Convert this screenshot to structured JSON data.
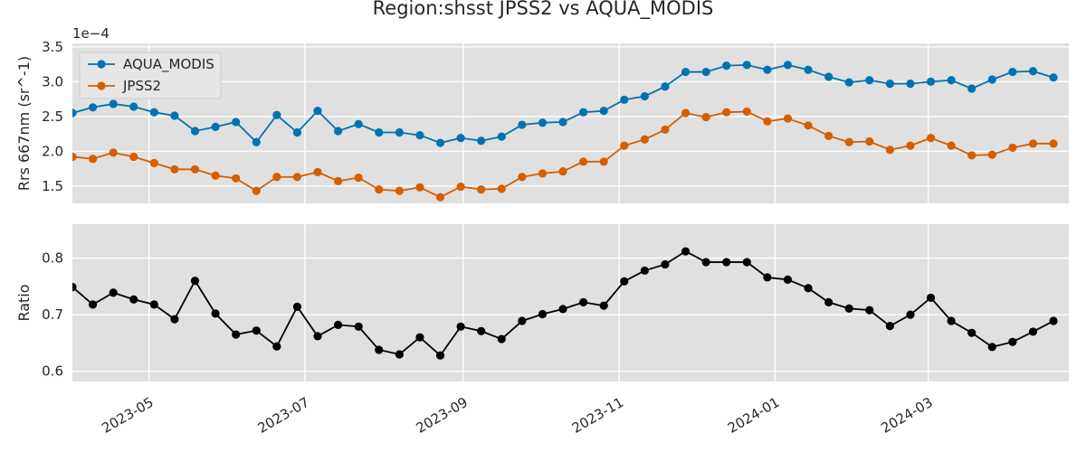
{
  "figure": {
    "title": "Region:shsst JPSS2 vs AQUA_MODIS"
  },
  "colors": {
    "panel_bg": "#e0e0e0",
    "grid": "#ffffff",
    "modis": "#0072b2",
    "jpss2": "#d55e00",
    "ratio": "#000000"
  },
  "chart_data": [
    {
      "type": "line",
      "ylabel": "Rrs 667nm (sr^-1)",
      "offset_label": "1e−4",
      "ylim": [
        1.25,
        3.55
      ],
      "yticks": [
        1.5,
        2.0,
        2.5,
        3.0,
        3.5
      ],
      "ytick_labels": [
        "1.5",
        "2.0",
        "2.5",
        "3.0",
        "3.5"
      ],
      "xlim": [
        "2023-04-01",
        "2024-04-25"
      ],
      "grid": true,
      "legend_placement": "top-left",
      "x": [
        "2023-04-01",
        "2023-04-09",
        "2023-04-17",
        "2023-04-25",
        "2023-05-03",
        "2023-05-11",
        "2023-05-19",
        "2023-05-27",
        "2023-06-04",
        "2023-06-12",
        "2023-06-20",
        "2023-06-28",
        "2023-07-06",
        "2023-07-14",
        "2023-07-22",
        "2023-07-30",
        "2023-08-07",
        "2023-08-15",
        "2023-08-23",
        "2023-08-31",
        "2023-09-08",
        "2023-09-16",
        "2023-09-24",
        "2023-10-02",
        "2023-10-10",
        "2023-10-18",
        "2023-10-26",
        "2023-11-03",
        "2023-11-11",
        "2023-11-19",
        "2023-11-27",
        "2023-12-05",
        "2023-12-13",
        "2023-12-21",
        "2023-12-29",
        "2024-01-06",
        "2024-01-14",
        "2024-01-22",
        "2024-01-30",
        "2024-02-07",
        "2024-02-15",
        "2024-02-23",
        "2024-03-02",
        "2024-03-10",
        "2024-03-18",
        "2024-03-26",
        "2024-04-03",
        "2024-04-11",
        "2024-04-19"
      ],
      "series": [
        {
          "name": "AQUA_MODIS",
          "color": "#0072b2",
          "values": [
            2.55,
            2.63,
            2.68,
            2.64,
            2.56,
            2.51,
            2.29,
            2.35,
            2.42,
            2.13,
            2.52,
            2.27,
            2.58,
            2.29,
            2.39,
            2.27,
            2.27,
            2.23,
            2.12,
            2.19,
            2.15,
            2.21,
            2.38,
            2.41,
            2.42,
            2.56,
            2.58,
            2.74,
            2.79,
            2.93,
            3.14,
            3.14,
            3.23,
            3.24,
            3.17,
            3.24,
            3.17,
            3.07,
            2.99,
            3.02,
            2.97,
            2.97,
            3.0,
            3.02,
            2.9,
            3.03,
            3.14,
            3.15,
            3.06
          ]
        },
        {
          "name": "JPSS2",
          "color": "#d55e00",
          "values": [
            1.92,
            1.89,
            1.98,
            1.92,
            1.83,
            1.74,
            1.74,
            1.65,
            1.61,
            1.43,
            1.63,
            1.63,
            1.7,
            1.57,
            1.62,
            1.45,
            1.43,
            1.48,
            1.34,
            1.49,
            1.45,
            1.46,
            1.63,
            1.68,
            1.71,
            1.85,
            1.85,
            2.08,
            2.17,
            2.31,
            2.55,
            2.49,
            2.56,
            2.57,
            2.43,
            2.47,
            2.37,
            2.22,
            2.13,
            2.14,
            2.02,
            2.08,
            2.19,
            2.08,
            1.94,
            1.95,
            2.05,
            2.11,
            2.11
          ]
        }
      ]
    },
    {
      "type": "line",
      "ylabel": "Ratio",
      "ylim": [
        0.582,
        0.86
      ],
      "yticks": [
        0.6,
        0.7,
        0.8
      ],
      "ytick_labels": [
        "0.6",
        "0.7",
        "0.8"
      ],
      "xlim": [
        "2023-04-01",
        "2024-04-25"
      ],
      "xticks": [
        "2023-05-01",
        "2023-07-01",
        "2023-09-01",
        "2023-11-01",
        "2024-01-01",
        "2024-03-01"
      ],
      "xtick_labels": [
        "2023-05",
        "2023-07",
        "2023-09",
        "2023-11",
        "2024-01",
        "2024-03"
      ],
      "grid": true,
      "x": [
        "2023-04-01",
        "2023-04-09",
        "2023-04-17",
        "2023-04-25",
        "2023-05-03",
        "2023-05-11",
        "2023-05-19",
        "2023-05-27",
        "2023-06-04",
        "2023-06-12",
        "2023-06-20",
        "2023-06-28",
        "2023-07-06",
        "2023-07-14",
        "2023-07-22",
        "2023-07-30",
        "2023-08-07",
        "2023-08-15",
        "2023-08-23",
        "2023-08-31",
        "2023-09-08",
        "2023-09-16",
        "2023-09-24",
        "2023-10-02",
        "2023-10-10",
        "2023-10-18",
        "2023-10-26",
        "2023-11-03",
        "2023-11-11",
        "2023-11-19",
        "2023-11-27",
        "2023-12-05",
        "2023-12-13",
        "2023-12-21",
        "2023-12-29",
        "2024-01-06",
        "2024-01-14",
        "2024-01-22",
        "2024-01-30",
        "2024-02-07",
        "2024-02-15",
        "2024-02-23",
        "2024-03-02",
        "2024-03-10",
        "2024-03-18",
        "2024-03-26",
        "2024-04-03",
        "2024-04-11",
        "2024-04-19"
      ],
      "series": [
        {
          "color": "#000000",
          "values": [
            0.749,
            0.718,
            0.739,
            0.727,
            0.718,
            0.692,
            0.76,
            0.702,
            0.665,
            0.672,
            0.644,
            0.714,
            0.662,
            0.682,
            0.679,
            0.638,
            0.63,
            0.66,
            0.628,
            0.679,
            0.671,
            0.657,
            0.689,
            0.701,
            0.71,
            0.722,
            0.716,
            0.759,
            0.778,
            0.789,
            0.812,
            0.793,
            0.793,
            0.793,
            0.766,
            0.762,
            0.747,
            0.722,
            0.711,
            0.708,
            0.68,
            0.7,
            0.73,
            0.689,
            0.668,
            0.643,
            0.652,
            0.67,
            0.689
          ]
        }
      ]
    }
  ]
}
